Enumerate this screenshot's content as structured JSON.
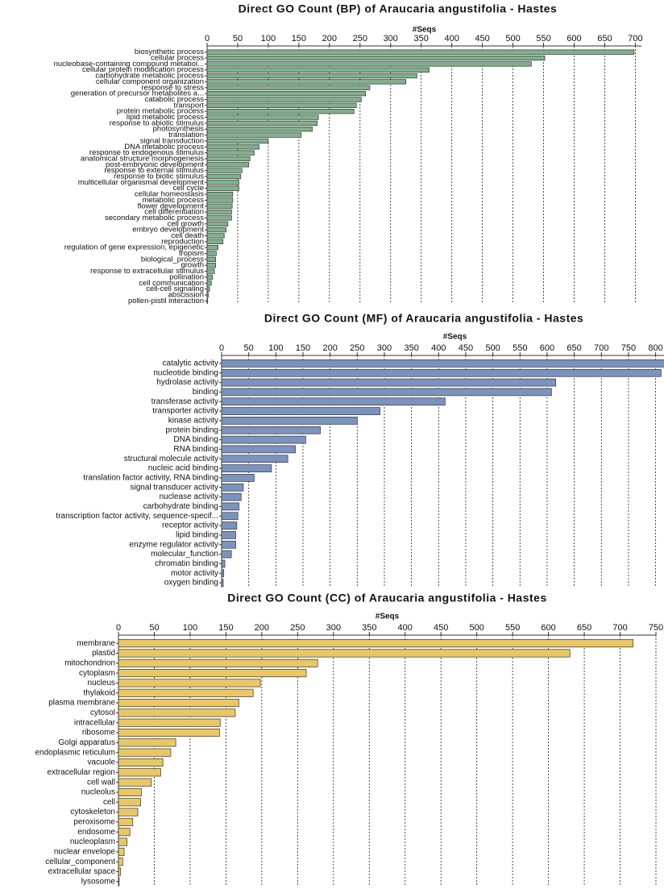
{
  "chart_data": [
    {
      "type": "bar",
      "orientation": "horizontal",
      "title": "Direct GO Count (BP) of Araucaria angustifolia - Hastes",
      "xlabel": "#Seqs",
      "color": "#80b08c",
      "grid": true,
      "categories": [
        "biosynthetic process",
        "cellular process",
        "nucleobase-containing compound metabol...",
        "cellular protein modification process",
        "carbohydrate metabolic process",
        "cellular component organization",
        "response to stress",
        "generation of precursor metabolites a...",
        "catabolic process",
        "transport",
        "protein metabolic process",
        "lipid metabolic process",
        "response to abiotic stimulus",
        "photosynthesis",
        "translation",
        "signal transduction",
        "DNA metabolic process",
        "response to endogenous stimulus",
        "anatomical structure morphogenesis",
        "post-embryonic development",
        "response to external stimulus",
        "response to biotic stimulus",
        "multicellular organismal development",
        "cell cycle",
        "cellular homeostasis",
        "metabolic process",
        "flower development",
        "cell differentiation",
        "secondary metabolic process",
        "cell growth",
        "embryo development",
        "cell death",
        "reproduction",
        "regulation of gene expression, epigenetic",
        "tropism",
        "biological_process",
        "growth",
        "response to extracellular stimulus",
        "pollination",
        "cell communication",
        "cell-cell signaling",
        "abscission",
        "pollen-pistil interaction"
      ],
      "values": [
        698,
        552,
        530,
        363,
        343,
        325,
        266,
        259,
        252,
        244,
        240,
        182,
        180,
        172,
        154,
        100,
        85,
        77,
        70,
        68,
        57,
        55,
        52,
        52,
        42,
        42,
        41,
        40,
        40,
        34,
        31,
        28,
        26,
        18,
        15,
        14,
        14,
        12,
        9,
        7,
        4,
        2,
        1
      ],
      "xlim": [
        0,
        710
      ],
      "xticks": [
        0,
        50,
        100,
        150,
        200,
        250,
        300,
        350,
        400,
        450,
        500,
        550,
        600,
        650,
        700
      ]
    },
    {
      "type": "bar",
      "orientation": "horizontal",
      "title": "Direct GO Count (MF) of Araucaria angustifolia - Hastes",
      "xlabel": "#Seqs",
      "color": "#7b93be",
      "grid": true,
      "categories": [
        "catalytic activity",
        "nucleotide binding",
        "hydrolase activity",
        "binding",
        "transferase activity",
        "transporter activity",
        "kinase activity",
        "protein binding",
        "DNA binding",
        "RNA binding",
        "structural molecule activity",
        "nucleic acid binding",
        "translation factor activity, RNA binding",
        "signal transducer activity",
        "nuclease activity",
        "carbohydrate binding",
        "transcription factor activity, sequence-specif...",
        "receptor activity",
        "lipid binding",
        "enzyme regulator activity",
        "molecular_function",
        "chromatin binding",
        "motor activity",
        "oxygen binding"
      ],
      "values": [
        850,
        810,
        616,
        608,
        412,
        292,
        250,
        182,
        155,
        136,
        122,
        92,
        60,
        40,
        36,
        32,
        30,
        28,
        26,
        26,
        18,
        6,
        4,
        3
      ],
      "xlim": [
        0,
        860
      ],
      "xticks": [
        0,
        50,
        100,
        150,
        200,
        250,
        300,
        350,
        400,
        450,
        500,
        550,
        600,
        650,
        700,
        750,
        800,
        850
      ]
    },
    {
      "type": "bar",
      "orientation": "horizontal",
      "title": "Direct GO Count (CC) of Araucaria angustifolia - Hastes",
      "xlabel": "#Seqs",
      "color": "#e9c765",
      "grid": true,
      "categories": [
        "membrane",
        "plastid",
        "mitochondrion",
        "cytoplasm",
        "nucleus",
        "thylakoid",
        "plasma membrane",
        "cytosol",
        "intracellular",
        "ribosome",
        "Golgi apparatus",
        "endoplasmic reticulum",
        "vacuole",
        "extracellular region",
        "cell wall",
        "nucleolus",
        "cell",
        "cytoskeleton",
        "peroxisome",
        "endosome",
        "nucleoplasm",
        "nuclear envelope",
        "cellular_component",
        "extracellular space",
        "lysosome"
      ],
      "values": [
        718,
        630,
        278,
        262,
        198,
        188,
        168,
        163,
        142,
        141,
        80,
        73,
        62,
        59,
        46,
        32,
        31,
        27,
        20,
        16,
        12,
        8,
        6,
        3,
        1
      ],
      "xlim": [
        0,
        750
      ],
      "xticks": [
        0,
        50,
        100,
        150,
        200,
        250,
        300,
        350,
        400,
        450,
        500,
        550,
        600,
        650,
        700,
        750
      ]
    }
  ]
}
